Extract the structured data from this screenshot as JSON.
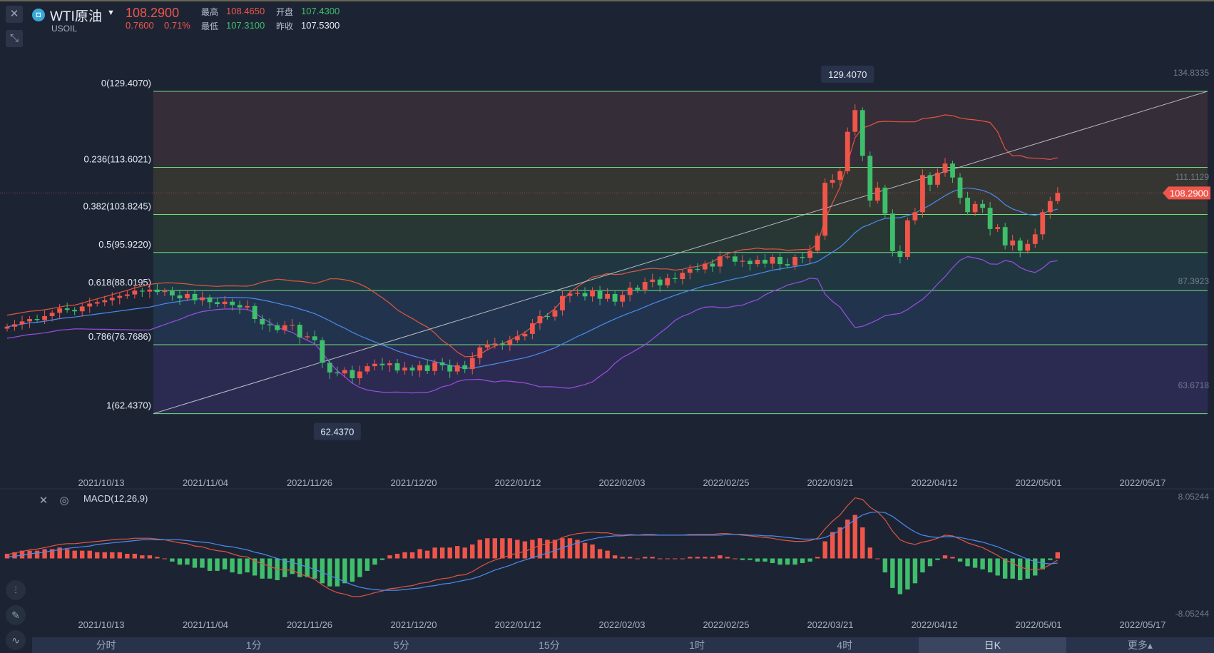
{
  "header": {
    "symbol_name": "WTI原油",
    "symbol_code": "USOIL",
    "last_price": "108.2900",
    "change": "0.7600",
    "change_pct": "0.71%",
    "high_label": "最高",
    "high": "108.4650",
    "open_label": "开盘",
    "open": "107.4300",
    "low_label": "最低",
    "low": "107.3100",
    "prev_close_label": "昨收",
    "prev_close": "107.5300"
  },
  "colors": {
    "up": "#f0554a",
    "down": "#3fbf6b",
    "fib_line": "#6fe07a",
    "bg": "#1c2434"
  },
  "chart_data": {
    "type": "candlestick",
    "price_axis": {
      "labels": [
        "134.8335",
        "111.1129",
        "87.3923",
        "63.6718"
      ],
      "range": [
        52.0,
        138.0
      ]
    },
    "current_price_tag": "108.2900",
    "fibonacci": [
      {
        "level": "0",
        "price": 129.407,
        "label": "0(129.4070)"
      },
      {
        "level": "0.236",
        "price": 113.6021,
        "label": "0.236(113.6021)"
      },
      {
        "level": "0.382",
        "price": 103.8245,
        "label": "0.382(103.8245)"
      },
      {
        "level": "0.5",
        "price": 95.922,
        "label": "0.5(95.9220)"
      },
      {
        "level": "0.618",
        "price": 88.0195,
        "label": "0.618(88.0195)"
      },
      {
        "level": "0.786",
        "price": 76.7686,
        "label": "0.786(76.7686)"
      },
      {
        "level": "1",
        "price": 62.437,
        "label": "1(62.4370)"
      }
    ],
    "high_marker": "129.4070",
    "low_marker": "62.4370",
    "date_axis": [
      "2021/10/13",
      "2021/11/04",
      "2021/11/26",
      "2021/12/20",
      "2022/01/12",
      "2022/02/03",
      "2022/02/25",
      "2022/03/21",
      "2022/04/12",
      "2022/05/01",
      "2022/05/17"
    ],
    "close_prices": [
      80.5,
      81.0,
      81.6,
      82.1,
      81.9,
      82.7,
      83.4,
      84.3,
      84.0,
      83.7,
      84.7,
      85.3,
      85.6,
      86.0,
      86.5,
      86.9,
      87.2,
      88.0,
      87.8,
      88.2,
      87.7,
      87.9,
      87.0,
      86.4,
      87.3,
      86.0,
      86.6,
      85.6,
      85.2,
      85.7,
      85.0,
      84.5,
      84.8,
      82.1,
      81.0,
      80.8,
      79.8,
      80.8,
      80.9,
      78.3,
      78.5,
      77.7,
      73.0,
      71.0,
      70.8,
      71.5,
      69.8,
      71.2,
      72.3,
      72.8,
      72.5,
      72.9,
      71.4,
      72.0,
      71.4,
      72.5,
      71.3,
      73.1,
      72.5,
      71.2,
      72.5,
      71.7,
      74.0,
      76.2,
      76.8,
      77.0,
      76.8,
      77.7,
      78.5,
      79.0,
      81.2,
      82.7,
      82.6,
      83.9,
      86.9,
      87.4,
      87.5,
      86.8,
      88.1,
      86.3,
      87.3,
      85.7,
      87.1,
      88.6,
      88.2,
      89.8,
      90.3,
      89.1,
      90.6,
      90.4,
      91.7,
      92.5,
      92.4,
      93.6,
      93.0,
      95.1,
      95.1,
      94.0,
      94.2,
      93.5,
      94.4,
      93.6,
      95.0,
      93.5,
      93.2,
      95.0,
      94.8,
      96.3,
      99.4,
      110.4,
      111.0,
      112.8,
      121.0,
      125.5,
      116.0,
      106.7,
      109.4,
      104.0,
      96.2,
      95.0,
      102.6,
      104.3,
      112.0,
      110.0,
      112.5,
      114.4,
      111.5,
      107.3,
      104.3,
      106.0,
      105.2,
      100.8,
      101.2,
      97.4,
      98.4,
      96.3,
      97.7,
      99.7,
      104.3,
      106.6,
      108.29
    ],
    "macd": {
      "label": "MACD(12,26,9)",
      "axis_labels": [
        "8.05244",
        "-8.05244"
      ],
      "range": [
        -8.5,
        8.5
      ],
      "dif": [
        0.5,
        0.7,
        0.9,
        1.1,
        1.2,
        1.4,
        1.6,
        1.8,
        1.9,
        1.9,
        2.0,
        2.1,
        2.2,
        2.3,
        2.4,
        2.5,
        2.5,
        2.6,
        2.6,
        2.6,
        2.5,
        2.4,
        2.2,
        2.0,
        1.9,
        1.6,
        1.5,
        1.2,
        1.0,
        0.9,
        0.6,
        0.3,
        0.2,
        -0.3,
        -0.7,
        -1.0,
        -1.4,
        -1.5,
        -1.5,
        -2.0,
        -2.3,
        -2.7,
        -3.4,
        -4.0,
        -4.4,
        -4.6,
        -4.9,
        -4.9,
        -4.7,
        -4.4,
        -4.2,
        -3.9,
        -3.8,
        -3.6,
        -3.5,
        -3.2,
        -3.1,
        -2.8,
        -2.6,
        -2.5,
        -2.2,
        -2.1,
        -1.7,
        -1.1,
        -0.6,
        -0.2,
        0.1,
        0.4,
        0.7,
        0.9,
        1.3,
        1.7,
        1.9,
        2.2,
        2.7,
        3.0,
        3.2,
        3.3,
        3.4,
        3.3,
        3.3,
        3.1,
        3.0,
        3.1,
        3.0,
        3.1,
        3.1,
        3.0,
        3.0,
        3.0,
        3.0,
        3.1,
        3.1,
        3.1,
        3.1,
        3.2,
        3.2,
        3.1,
        3.0,
        2.9,
        2.8,
        2.7,
        2.6,
        2.4,
        2.3,
        2.2,
        2.2,
        2.3,
        2.6,
        3.8,
        4.8,
        5.6,
        6.8,
        7.8,
        7.6,
        6.6,
        6.0,
        5.0,
        3.5,
        2.4,
        2.0,
        1.8,
        2.1,
        2.3,
        2.6,
        3.0,
        2.9,
        2.5,
        2.0,
        1.7,
        1.4,
        0.9,
        0.4,
        -0.2,
        -0.6,
        -1.1,
        -1.4,
        -1.5,
        -1.3,
        -0.8,
        -0.2
      ],
      "dea": [
        0.2,
        0.3,
        0.4,
        0.6,
        0.7,
        0.8,
        1.0,
        1.1,
        1.3,
        1.4,
        1.5,
        1.6,
        1.8,
        1.9,
        2.0,
        2.1,
        2.2,
        2.3,
        2.4,
        2.4,
        2.4,
        2.4,
        2.4,
        2.4,
        2.3,
        2.2,
        2.1,
        2.0,
        1.8,
        1.6,
        1.5,
        1.3,
        1.1,
        0.8,
        0.6,
        0.3,
        0.0,
        -0.3,
        -0.5,
        -0.8,
        -1.1,
        -1.4,
        -1.8,
        -2.2,
        -2.6,
        -3.0,
        -3.4,
        -3.7,
        -3.9,
        -4.0,
        -4.1,
        -4.1,
        -4.1,
        -4.0,
        -3.9,
        -3.8,
        -3.6,
        -3.5,
        -3.3,
        -3.2,
        -3.0,
        -2.8,
        -2.6,
        -2.3,
        -1.9,
        -1.5,
        -1.2,
        -0.9,
        -0.5,
        -0.2,
        0.1,
        0.4,
        0.7,
        1.0,
        1.4,
        1.7,
        2.0,
        2.3,
        2.5,
        2.7,
        2.8,
        2.9,
        2.9,
        3.0,
        3.0,
        3.0,
        3.0,
        3.0,
        3.0,
        3.0,
        3.0,
        3.0,
        3.0,
        3.0,
        3.0,
        3.0,
        3.1,
        3.1,
        3.1,
        3.0,
        3.0,
        2.9,
        2.9,
        2.8,
        2.7,
        2.6,
        2.5,
        2.5,
        2.5,
        2.7,
        3.1,
        3.6,
        4.3,
        5.0,
        5.6,
        5.9,
        6.0,
        5.9,
        5.4,
        4.7,
        4.0,
        3.4,
        3.0,
        2.8,
        2.7,
        2.8,
        2.8,
        2.7,
        2.5,
        2.3,
        2.1,
        1.8,
        1.5,
        1.1,
        0.7,
        0.3,
        -0.1,
        -0.4,
        -0.6,
        -0.7,
        -0.6
      ]
    }
  },
  "macd_tools": {
    "close_icon": "close-icon",
    "settings_icon": "gear-icon"
  },
  "timeframes": [
    {
      "label": "分时"
    },
    {
      "label": "1分"
    },
    {
      "label": "5分"
    },
    {
      "label": "15分"
    },
    {
      "label": "1时"
    },
    {
      "label": "4时"
    },
    {
      "label": "日K",
      "active": true
    },
    {
      "label": "更多▴"
    }
  ]
}
